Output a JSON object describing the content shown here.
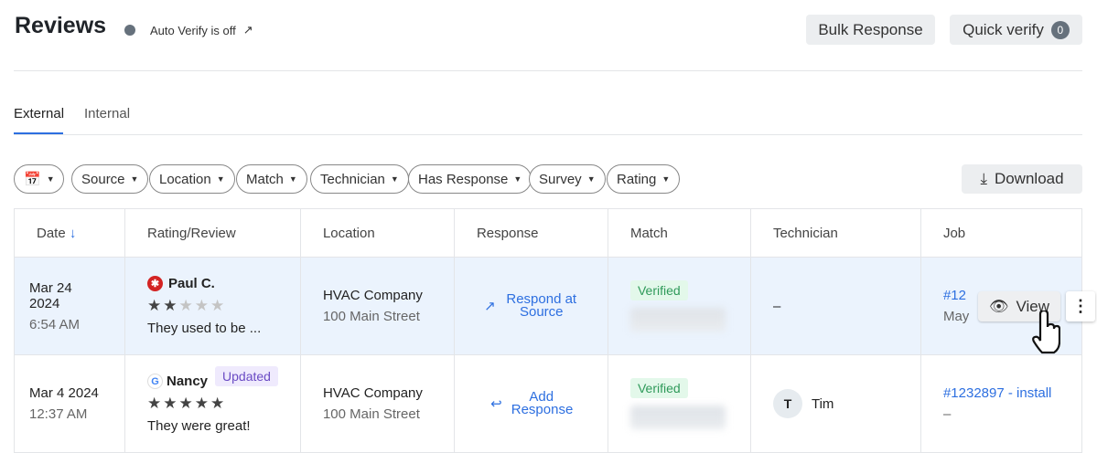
{
  "header": {
    "title": "Reviews",
    "auto_verify": "Auto Verify is off",
    "bulk_response": "Bulk Response",
    "quick_verify": "Quick verify",
    "quick_verify_count": "0"
  },
  "tabs": [
    {
      "label": "External",
      "active": true
    },
    {
      "label": "Internal",
      "active": false
    }
  ],
  "filters": [
    "Source",
    "Location",
    "Match",
    "Technician",
    "Has Response",
    "Survey",
    "Rating"
  ],
  "download": "Download",
  "columns": [
    "Date",
    "Rating/Review",
    "Location",
    "Response",
    "Match",
    "Technician",
    "Job"
  ],
  "rows": [
    {
      "date": "Mar 24 2024",
      "time": "6:54 AM",
      "source": "yelp",
      "name": "Paul C.",
      "rating": 2,
      "review": "They used to be ...",
      "location": "HVAC Company",
      "address": "100 Main Street",
      "response": "Respond at Source",
      "match": "Verified",
      "technician": "–",
      "job": "#12",
      "job_sub": "May",
      "view": "View"
    },
    {
      "date": "Mar 4 2024",
      "time": "12:37 AM",
      "source": "google",
      "name": "Nancy",
      "badge": "Updated",
      "rating": 5,
      "review": "They were great!",
      "location": "HVAC Company",
      "address": "100 Main Street",
      "response": "Add Response",
      "match": "Verified",
      "technician_initial": "T",
      "technician": "Tim",
      "job": "#1232897 - install",
      "job_sub": "–"
    }
  ],
  "colors": {
    "accent": "#2d6fe0",
    "verified": "#2f9a5a",
    "highlight_row": "#ebf3fd"
  }
}
